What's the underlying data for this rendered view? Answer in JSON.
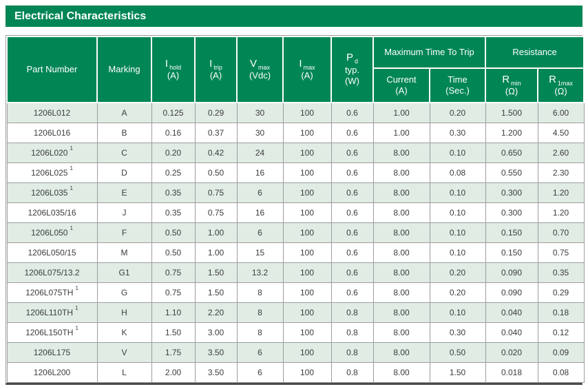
{
  "title": "Electrical Characteristics",
  "colors": {
    "brand_green": "#008655",
    "row_stripe": "#e0ece4",
    "grid_line": "#9c9c9c",
    "table_bottom_line": "#4a4a4a",
    "body_text": "#3c3c3c"
  },
  "table": {
    "column_keys": [
      "part_number",
      "marking",
      "i_hold",
      "i_trip",
      "v_max",
      "i_max",
      "p_d",
      "trip_current",
      "trip_time",
      "r_min",
      "r_1max"
    ],
    "header": {
      "part_number": "Part Number",
      "marking": "Marking",
      "i_hold": {
        "symbol": "I",
        "sub": "hold",
        "unit": "(A)"
      },
      "i_trip": {
        "symbol": "I",
        "sub": "trip",
        "unit": "(A)"
      },
      "v_max": {
        "symbol": "V",
        "sub": "max",
        "unit": "(Vdc)"
      },
      "i_max": {
        "symbol": "I",
        "sub": "max",
        "unit": "(A)"
      },
      "p_d": {
        "symbol": "P",
        "sub": "d",
        "line2": "typ.",
        "unit": "(W)"
      },
      "max_time_to_trip_group": "Maximum Time To Trip",
      "trip_current": {
        "label": "Current",
        "unit": "(A)"
      },
      "trip_time": {
        "label": "Time",
        "unit": "(Sec.)"
      },
      "resistance_group": "Resistance",
      "r_min": {
        "symbol": "R",
        "sub": "min",
        "unit": "(Ω)"
      },
      "r_1max": {
        "symbol": "R",
        "sub": "1max",
        "unit": "(Ω)"
      }
    },
    "rows": [
      {
        "part_number": "1206L012",
        "footnote": "",
        "marking": "A",
        "i_hold": "0.125",
        "i_trip": "0.29",
        "v_max": "30",
        "i_max": "100",
        "p_d": "0.6",
        "trip_current": "1.00",
        "trip_time": "0.20",
        "r_min": "1.500",
        "r_1max": "6.00"
      },
      {
        "part_number": "1206L016",
        "footnote": "",
        "marking": "B",
        "i_hold": "0.16",
        "i_trip": "0.37",
        "v_max": "30",
        "i_max": "100",
        "p_d": "0.6",
        "trip_current": "1.00",
        "trip_time": "0.30",
        "r_min": "1.200",
        "r_1max": "4.50"
      },
      {
        "part_number": "1206L020",
        "footnote": "1",
        "marking": "C",
        "i_hold": "0.20",
        "i_trip": "0.42",
        "v_max": "24",
        "i_max": "100",
        "p_d": "0.6",
        "trip_current": "8.00",
        "trip_time": "0.10",
        "r_min": "0.650",
        "r_1max": "2.60"
      },
      {
        "part_number": "1206L025",
        "footnote": "1",
        "marking": "D",
        "i_hold": "0.25",
        "i_trip": "0.50",
        "v_max": "16",
        "i_max": "100",
        "p_d": "0.6",
        "trip_current": "8.00",
        "trip_time": "0.08",
        "r_min": "0.550",
        "r_1max": "2.30"
      },
      {
        "part_number": "1206L035",
        "footnote": "1",
        "marking": "E",
        "i_hold": "0.35",
        "i_trip": "0.75",
        "v_max": "6",
        "i_max": "100",
        "p_d": "0.6",
        "trip_current": "8.00",
        "trip_time": "0.10",
        "r_min": "0.300",
        "r_1max": "1.20"
      },
      {
        "part_number": "1206L035/16",
        "footnote": "",
        "marking": "J",
        "i_hold": "0.35",
        "i_trip": "0.75",
        "v_max": "16",
        "i_max": "100",
        "p_d": "0.6",
        "trip_current": "8.00",
        "trip_time": "0.10",
        "r_min": "0.300",
        "r_1max": "1.20"
      },
      {
        "part_number": "1206L050",
        "footnote": "1",
        "marking": "F",
        "i_hold": "0.50",
        "i_trip": "1.00",
        "v_max": "6",
        "i_max": "100",
        "p_d": "0.6",
        "trip_current": "8.00",
        "trip_time": "0.10",
        "r_min": "0.150",
        "r_1max": "0.70"
      },
      {
        "part_number": "1206L050/15",
        "footnote": "",
        "marking": "M",
        "i_hold": "0.50",
        "i_trip": "1.00",
        "v_max": "15",
        "i_max": "100",
        "p_d": "0.6",
        "trip_current": "8.00",
        "trip_time": "0.10",
        "r_min": "0.150",
        "r_1max": "0.75"
      },
      {
        "part_number": "1206L075/13.2",
        "footnote": "",
        "marking": "G1",
        "i_hold": "0.75",
        "i_trip": "1.50",
        "v_max": "13.2",
        "i_max": "100",
        "p_d": "0.6",
        "trip_current": "8.00",
        "trip_time": "0.20",
        "r_min": "0.090",
        "r_1max": "0.35"
      },
      {
        "part_number": "1206L075TH",
        "footnote": "1",
        "marking": "G",
        "i_hold": "0.75",
        "i_trip": "1.50",
        "v_max": "8",
        "i_max": "100",
        "p_d": "0.6",
        "trip_current": "8.00",
        "trip_time": "0.20",
        "r_min": "0.090",
        "r_1max": "0.29"
      },
      {
        "part_number": "1206L110TH",
        "footnote": "1",
        "marking": "H",
        "i_hold": "1.10",
        "i_trip": "2.20",
        "v_max": "8",
        "i_max": "100",
        "p_d": "0.8",
        "trip_current": "8.00",
        "trip_time": "0.10",
        "r_min": "0.040",
        "r_1max": "0.18"
      },
      {
        "part_number": "1206L150TH",
        "footnote": "1",
        "marking": "K",
        "i_hold": "1.50",
        "i_trip": "3.00",
        "v_max": "8",
        "i_max": "100",
        "p_d": "0.8",
        "trip_current": "8.00",
        "trip_time": "0.30",
        "r_min": "0.040",
        "r_1max": "0.12"
      },
      {
        "part_number": "1206L175",
        "footnote": "",
        "marking": "V",
        "i_hold": "1.75",
        "i_trip": "3.50",
        "v_max": "6",
        "i_max": "100",
        "p_d": "0.8",
        "trip_current": "8.00",
        "trip_time": "0.50",
        "r_min": "0.020",
        "r_1max": "0.09"
      },
      {
        "part_number": "1206L200",
        "footnote": "",
        "marking": "L",
        "i_hold": "2.00",
        "i_trip": "3.50",
        "v_max": "6",
        "i_max": "100",
        "p_d": "0.8",
        "trip_current": "8.00",
        "trip_time": "1.50",
        "r_min": "0.018",
        "r_1max": "0.08"
      }
    ]
  }
}
